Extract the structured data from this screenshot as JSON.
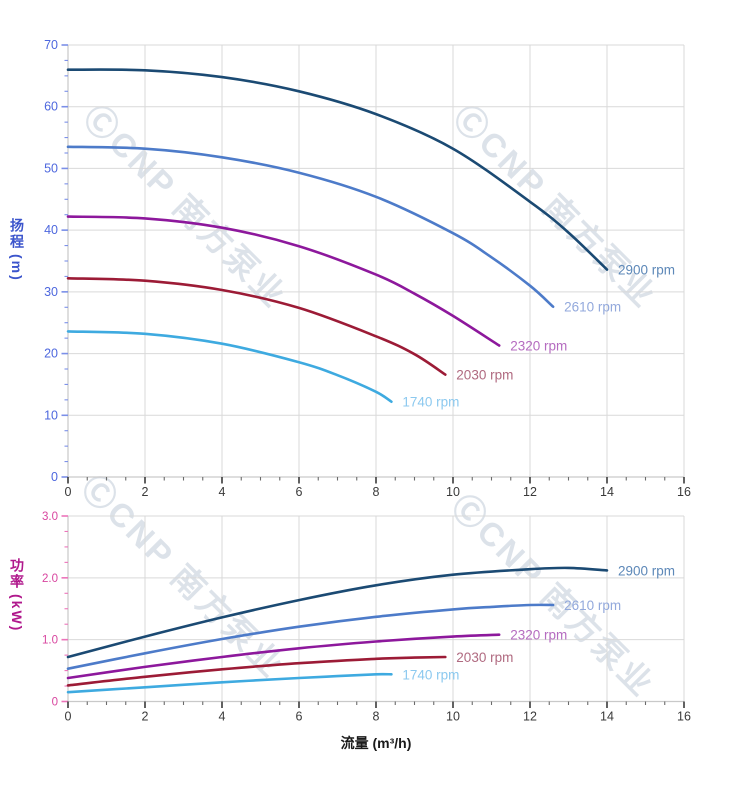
{
  "watermark": {
    "text": "ⒸCNP 南方泵业"
  },
  "x_axis": {
    "title": "流量 (m³/h)",
    "min": 0,
    "max": 16,
    "major_step": 2,
    "minor_step": 0.5,
    "tick_labels": [
      "0",
      "2",
      "4",
      "6",
      "8",
      "10",
      "12",
      "14",
      "16"
    ],
    "tick_color": "#3a3a3a",
    "minor_tick_color": "#6a6a6a",
    "tick_label_color": "#3a3a3a",
    "title_color": "#1a1a1a"
  },
  "grid_color": "#d9d9d9",
  "axis_line_color": "#c9c9c9",
  "chart_data": [
    {
      "type": "line",
      "title": "",
      "xlabel": "流量 (m³/h)",
      "ylabel": "扬程 (m)",
      "y_title_cjk": "扬程",
      "y_title_unit": "(m)",
      "y_title_color": "#3c55cc",
      "tick_color": "#7b8fe8",
      "tick_label_color": "#4d67de",
      "xlim": [
        0,
        16
      ],
      "ylim": [
        0,
        70
      ],
      "y_major": 10,
      "y_minor": 2.5,
      "y_tick_labels": [
        "0",
        "10",
        "20",
        "30",
        "40",
        "50",
        "60",
        "70"
      ],
      "grid": true,
      "legend_position": "at-line-ends",
      "series": [
        {
          "name": "2900 rpm",
          "color": "#1b4a73",
          "label_color": "#5d88b8",
          "points": [
            [
              0,
              66
            ],
            [
              2,
              65.9
            ],
            [
              4,
              64.8
            ],
            [
              6,
              62.5
            ],
            [
              8,
              58.8
            ],
            [
              10,
              53.2
            ],
            [
              12,
              44.6
            ],
            [
              13,
              39.6
            ],
            [
              14,
              33.6
            ]
          ]
        },
        {
          "name": "2610 rpm",
          "color": "#4d7bc9",
          "label_color": "#93a9dc",
          "points": [
            [
              0,
              53.5
            ],
            [
              2,
              53.2
            ],
            [
              4,
              51.8
            ],
            [
              6,
              49.3
            ],
            [
              8,
              45.4
            ],
            [
              10,
              39.5
            ],
            [
              11,
              35.6
            ],
            [
              12,
              31.0
            ],
            [
              12.6,
              27.6
            ]
          ]
        },
        {
          "name": "2320 rpm",
          "color": "#8d189c",
          "label_color": "#b56cc0",
          "points": [
            [
              0,
              42.2
            ],
            [
              2,
              41.9
            ],
            [
              4,
              40.4
            ],
            [
              6,
              37.4
            ],
            [
              8,
              32.8
            ],
            [
              9,
              29.7
            ],
            [
              10,
              26.1
            ],
            [
              11.2,
              21.3
            ]
          ]
        },
        {
          "name": "2030 rpm",
          "color": "#9c1b36",
          "label_color": "#b06a80",
          "points": [
            [
              0,
              32.2
            ],
            [
              2,
              31.8
            ],
            [
              4,
              30.3
            ],
            [
              6,
              27.4
            ],
            [
              8,
              22.8
            ],
            [
              9,
              19.9
            ],
            [
              9.8,
              16.6
            ]
          ]
        },
        {
          "name": "1740 rpm",
          "color": "#3eaae0",
          "label_color": "#8cc9ef",
          "points": [
            [
              0,
              23.6
            ],
            [
              2,
              23.2
            ],
            [
              4,
              21.6
            ],
            [
              6,
              18.6
            ],
            [
              7,
              16.5
            ],
            [
              8,
              13.8
            ],
            [
              8.4,
              12.2
            ]
          ]
        }
      ]
    },
    {
      "type": "line",
      "title": "",
      "xlabel": "流量 (m³/h)",
      "ylabel": "功率 (kW)",
      "y_title_cjk": "功率",
      "y_title_unit": "(kW)",
      "y_title_color": "#b0188c",
      "tick_color": "#ec74ba",
      "tick_label_color": "#d8459f",
      "xlim": [
        0,
        16
      ],
      "ylim": [
        0,
        3.0
      ],
      "y_major": 1.0,
      "y_minor": 0.25,
      "y_tick_labels": [
        "0",
        "1.0",
        "2.0",
        "3.0"
      ],
      "grid": true,
      "legend_position": "at-line-ends",
      "series": [
        {
          "name": "2900 rpm",
          "color": "#1b4a73",
          "label_color": "#5d88b8",
          "points": [
            [
              0,
              0.72
            ],
            [
              2,
              1.05
            ],
            [
              4,
              1.36
            ],
            [
              6,
              1.64
            ],
            [
              8,
              1.88
            ],
            [
              10,
              2.05
            ],
            [
              12,
              2.14
            ],
            [
              13,
              2.16
            ],
            [
              14,
              2.12
            ]
          ]
        },
        {
          "name": "2610 rpm",
          "color": "#4d7bc9",
          "label_color": "#93a9dc",
          "points": [
            [
              0,
              0.53
            ],
            [
              2,
              0.78
            ],
            [
              4,
              1.01
            ],
            [
              6,
              1.21
            ],
            [
              8,
              1.37
            ],
            [
              10,
              1.49
            ],
            [
              11,
              1.53
            ],
            [
              12,
              1.56
            ],
            [
              12.6,
              1.56
            ]
          ]
        },
        {
          "name": "2320 rpm",
          "color": "#8d189c",
          "label_color": "#b56cc0",
          "points": [
            [
              0,
              0.38
            ],
            [
              2,
              0.56
            ],
            [
              4,
              0.72
            ],
            [
              6,
              0.86
            ],
            [
              8,
              0.97
            ],
            [
              10,
              1.05
            ],
            [
              11.2,
              1.08
            ]
          ]
        },
        {
          "name": "2030 rpm",
          "color": "#9c1b36",
          "label_color": "#b06a80",
          "points": [
            [
              0,
              0.26
            ],
            [
              2,
              0.4
            ],
            [
              4,
              0.52
            ],
            [
              6,
              0.62
            ],
            [
              8,
              0.69
            ],
            [
              9,
              0.71
            ],
            [
              9.8,
              0.72
            ]
          ]
        },
        {
          "name": "1740 rpm",
          "color": "#3eaae0",
          "label_color": "#8cc9ef",
          "points": [
            [
              0,
              0.15
            ],
            [
              2,
              0.23
            ],
            [
              4,
              0.31
            ],
            [
              6,
              0.38
            ],
            [
              7,
              0.41
            ],
            [
              8,
              0.44
            ],
            [
              8.4,
              0.44
            ]
          ]
        }
      ]
    }
  ]
}
